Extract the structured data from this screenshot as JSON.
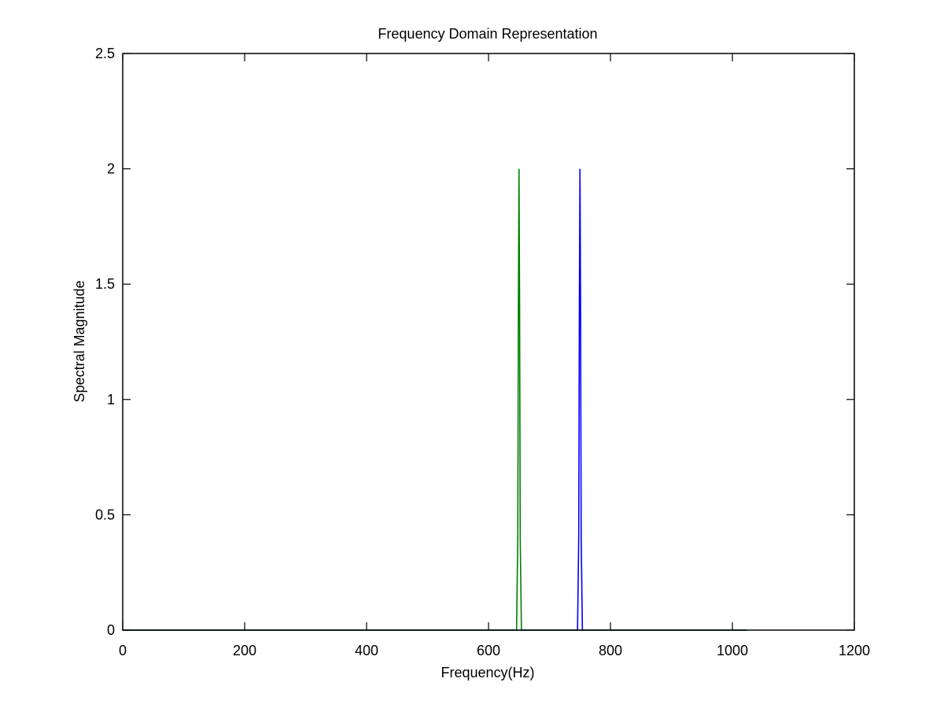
{
  "chart_data": {
    "type": "line",
    "title": "Frequency Domain Representation",
    "xlabel": "Frequency(Hz)",
    "ylabel": "Spectral Magnitude",
    "xlim": [
      0,
      1200
    ],
    "ylim": [
      0,
      2.5
    ],
    "xticks": [
      0,
      200,
      400,
      600,
      800,
      1000,
      1200
    ],
    "yticks": [
      0,
      0.5,
      1,
      1.5,
      2,
      2.5
    ],
    "ytick_labels": [
      "0",
      "0.5",
      "1",
      "1.5",
      "2",
      "2.5"
    ],
    "grid": false,
    "series": [
      {
        "color": "#0000ff",
        "x": [
          0,
          746,
          748,
          749,
          750,
          751,
          752,
          754,
          1024
        ],
        "y": [
          0,
          0,
          0.4,
          1.4,
          2,
          1.4,
          0.4,
          0,
          0
        ]
      },
      {
        "color": "#008000",
        "x": [
          0,
          646,
          648,
          649,
          650,
          651,
          652,
          654,
          1024
        ],
        "y": [
          0,
          0,
          0.4,
          1.4,
          2,
          1.4,
          0.4,
          0,
          0
        ]
      }
    ]
  }
}
